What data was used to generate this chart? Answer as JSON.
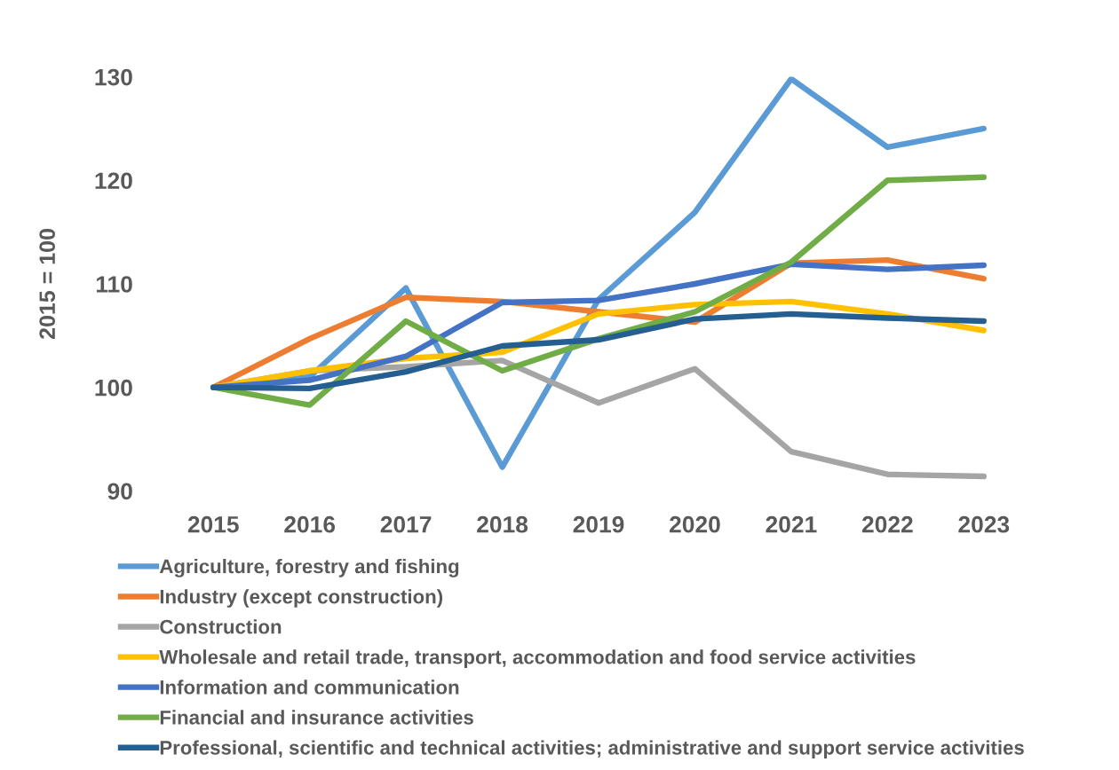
{
  "chart_data": {
    "type": "line",
    "ylabel": "2015 = 100",
    "categories": [
      "2015",
      "2016",
      "2017",
      "2018",
      "2019",
      "2020",
      "2021",
      "2022",
      "2023"
    ],
    "ylim": [
      90,
      130
    ],
    "yticks": [
      90,
      100,
      110,
      120,
      130
    ],
    "grid": false,
    "legend": "bottom",
    "marker": "none",
    "line_style": "solid",
    "series": [
      {
        "name": "Agriculture, forestry and fishing",
        "color": "#5b9bd5",
        "values": [
          100,
          101,
          109.6,
          92.3,
          108.5,
          116.9,
          129.8,
          123.2,
          125.0
        ]
      },
      {
        "name": "Industry (except construction)",
        "color": "#ed7d31",
        "values": [
          100,
          104.7,
          108.7,
          108.3,
          107.3,
          106.3,
          112.0,
          112.3,
          110.5
        ]
      },
      {
        "name": "Construction",
        "color": "#a5a5a5",
        "values": [
          100,
          101.6,
          102.0,
          102.6,
          98.5,
          101.8,
          93.8,
          91.6,
          91.4
        ]
      },
      {
        "name": "Wholesale and retail trade, transport, accommodation and food service activities",
        "color": "#ffc000",
        "values": [
          100,
          101.6,
          102.8,
          103.4,
          107.1,
          108.0,
          108.3,
          107.1,
          105.5
        ]
      },
      {
        "name": "Information and communication",
        "color": "#4472c4",
        "values": [
          100,
          100.7,
          103.0,
          108.2,
          108.4,
          110.0,
          111.9,
          111.4,
          111.8
        ]
      },
      {
        "name": "Financial and insurance activities",
        "color": "#70ad47",
        "values": [
          100,
          98.3,
          106.4,
          101.6,
          104.7,
          107.3,
          112.1,
          120.0,
          120.3
        ]
      },
      {
        "name": "Professional, scientific and technical activities; administrative and support service activities",
        "color": "#255e91",
        "values": [
          100,
          99.9,
          101.5,
          104.0,
          104.6,
          106.6,
          107.1,
          106.7,
          106.4
        ]
      }
    ]
  }
}
